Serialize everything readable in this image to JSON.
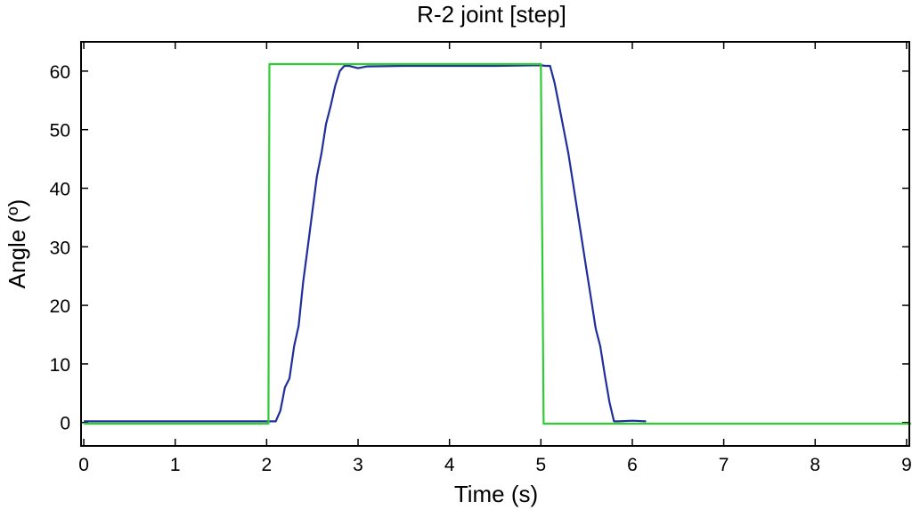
{
  "chart_data": {
    "type": "line",
    "title": "R-2 joint [step]",
    "xlabel": "Time (s)",
    "ylabel": "Angle (º)",
    "xlim": [
      -0.03,
      9.03
    ],
    "ylim": [
      -4,
      65
    ],
    "xticks": [
      0,
      1,
      2,
      3,
      4,
      5,
      6,
      7,
      8,
      9
    ],
    "yticks": [
      0,
      10,
      20,
      30,
      40,
      50,
      60
    ],
    "grid": false,
    "series": [
      {
        "color": "#1f2e9a",
        "x": [
          0,
          2.0,
          2.1,
          2.15,
          2.2,
          2.25,
          2.3,
          2.35,
          2.4,
          2.45,
          2.5,
          2.55,
          2.6,
          2.65,
          2.7,
          2.75,
          2.8,
          2.85,
          2.9,
          2.95,
          3.0,
          3.1,
          3.5,
          4.0,
          4.5,
          5.0,
          5.05,
          5.1,
          5.15,
          5.2,
          5.25,
          5.3,
          5.35,
          5.4,
          5.45,
          5.5,
          5.55,
          5.6,
          5.65,
          5.7,
          5.75,
          5.8,
          5.85,
          6.0,
          6.15
        ],
        "y": [
          0.2,
          0.2,
          0.2,
          2,
          6,
          7.5,
          13,
          16.5,
          24,
          30,
          36,
          42,
          46,
          51,
          54,
          57.5,
          60,
          60.9,
          60.9,
          60.7,
          60.5,
          60.8,
          60.9,
          60.9,
          60.9,
          61,
          60.9,
          60.9,
          58,
          54,
          50,
          46,
          41,
          36,
          31,
          26,
          21,
          16,
          13,
          8,
          3.5,
          0.2,
          0.2,
          0.3,
          0.2
        ]
      },
      {
        "color": "#2ecc33",
        "x": [
          0,
          2.02,
          2.03,
          5.0,
          5.03,
          9.05
        ],
        "y": [
          -0.2,
          -0.2,
          61.2,
          61.2,
          -0.2,
          -0.2
        ]
      }
    ]
  }
}
